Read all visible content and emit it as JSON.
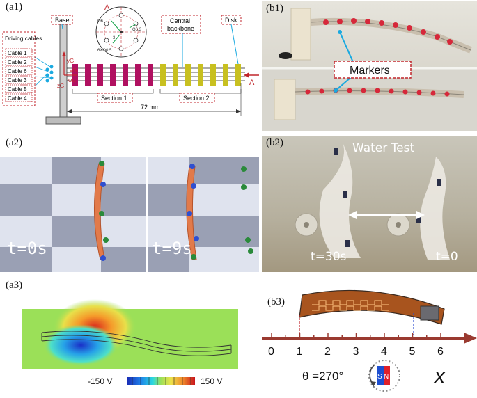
{
  "panels": {
    "a1": {
      "label": "(a1)",
      "base_label": "Base",
      "section_view_letter": "A",
      "section_arrow_letter": "A",
      "driving_cables_label": "Driving cables",
      "cables": [
        "Cable 1",
        "Cable 2",
        "Cable 6",
        "Cable 3",
        "Cable 5",
        "Cable 4"
      ],
      "backbone_label_line1": "Central",
      "backbone_label_line2": "backbone",
      "disk_label": "Disk",
      "section1_label": "Section 1",
      "section2_label": "Section 2",
      "length_label": "72 mm",
      "dim_o6": "O6",
      "dim_o63": "O6.3",
      "dim_holes": "6XO0.5",
      "dim_small": "3",
      "axis_y": "yG",
      "axis_x": "xG",
      "axis_z": "zG",
      "origin": "OG"
    },
    "a2": {
      "label": "(a2)",
      "time_left": "t=0s",
      "time_right": "t=9s"
    },
    "a3": {
      "label": "(a3)",
      "colorbar_min": "-150 V",
      "colorbar_max": "150 V"
    },
    "b1": {
      "label": "(b1)",
      "markers_label": "Markers"
    },
    "b2": {
      "label": "(b2)",
      "title": "Water Test",
      "time_left": "t=30s",
      "time_right": "t=0"
    },
    "b3": {
      "label": "(b3)",
      "ticks": [
        "0",
        "1",
        "2",
        "3",
        "4",
        "5",
        "6"
      ],
      "axis_var": "x",
      "theta_label": "θ =270°",
      "magnet_s": "S",
      "magnet_n": "N"
    }
  },
  "colors": {
    "red_dashed": "#c0262c",
    "section1_ring": "#b01060",
    "section2_ring": "#c8c020",
    "cyan_marker_line": "#19a9e0",
    "checker_light": "#dfe3ee",
    "checker_dark": "#9aa0b4",
    "ruler_arrow": "#9a3a30",
    "magnet_blue": "#1d4fd0",
    "magnet_red": "#e0202a"
  }
}
